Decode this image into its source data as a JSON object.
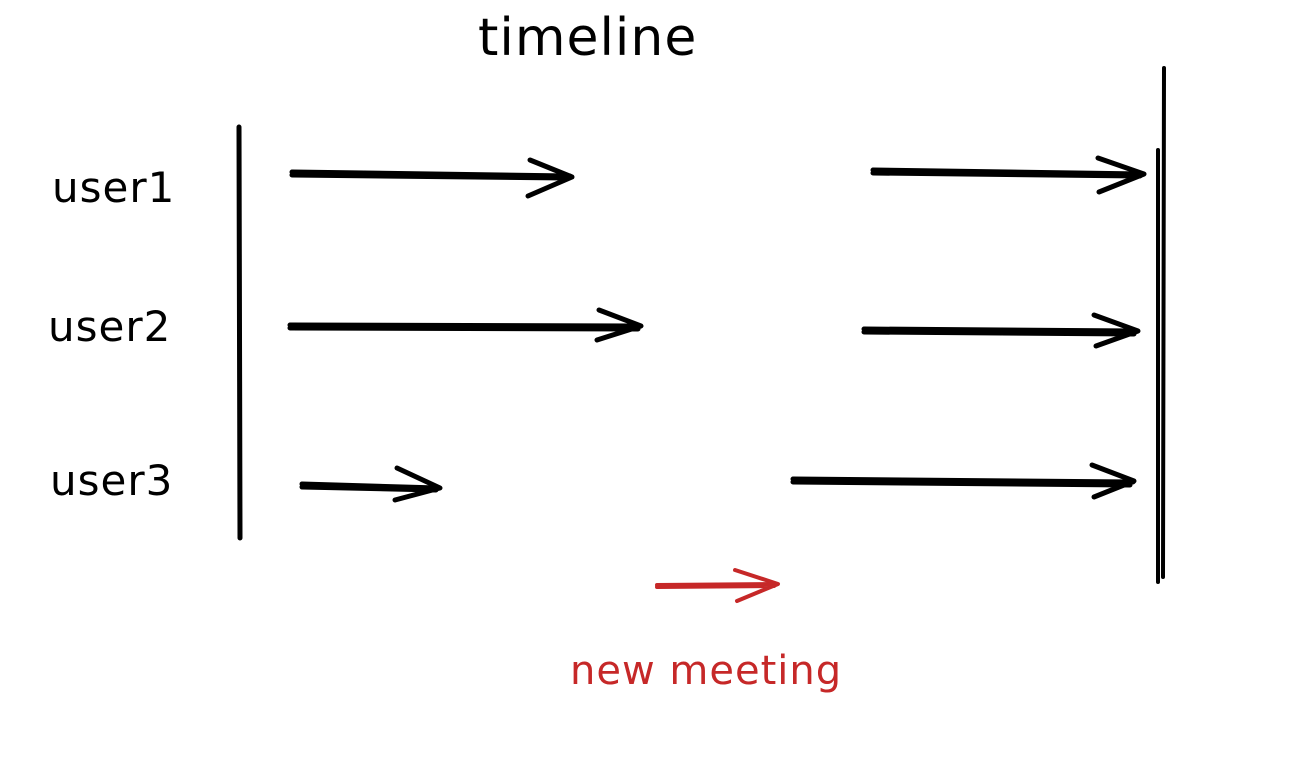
{
  "diagram": {
    "title": "timeline",
    "users": [
      {
        "label": "user1"
      },
      {
        "label": "user2"
      },
      {
        "label": "user3"
      }
    ],
    "legend": {
      "label": "new meeting"
    },
    "colors": {
      "ink": "#000000",
      "accent": "#c62828",
      "background": "#ffffff"
    }
  }
}
